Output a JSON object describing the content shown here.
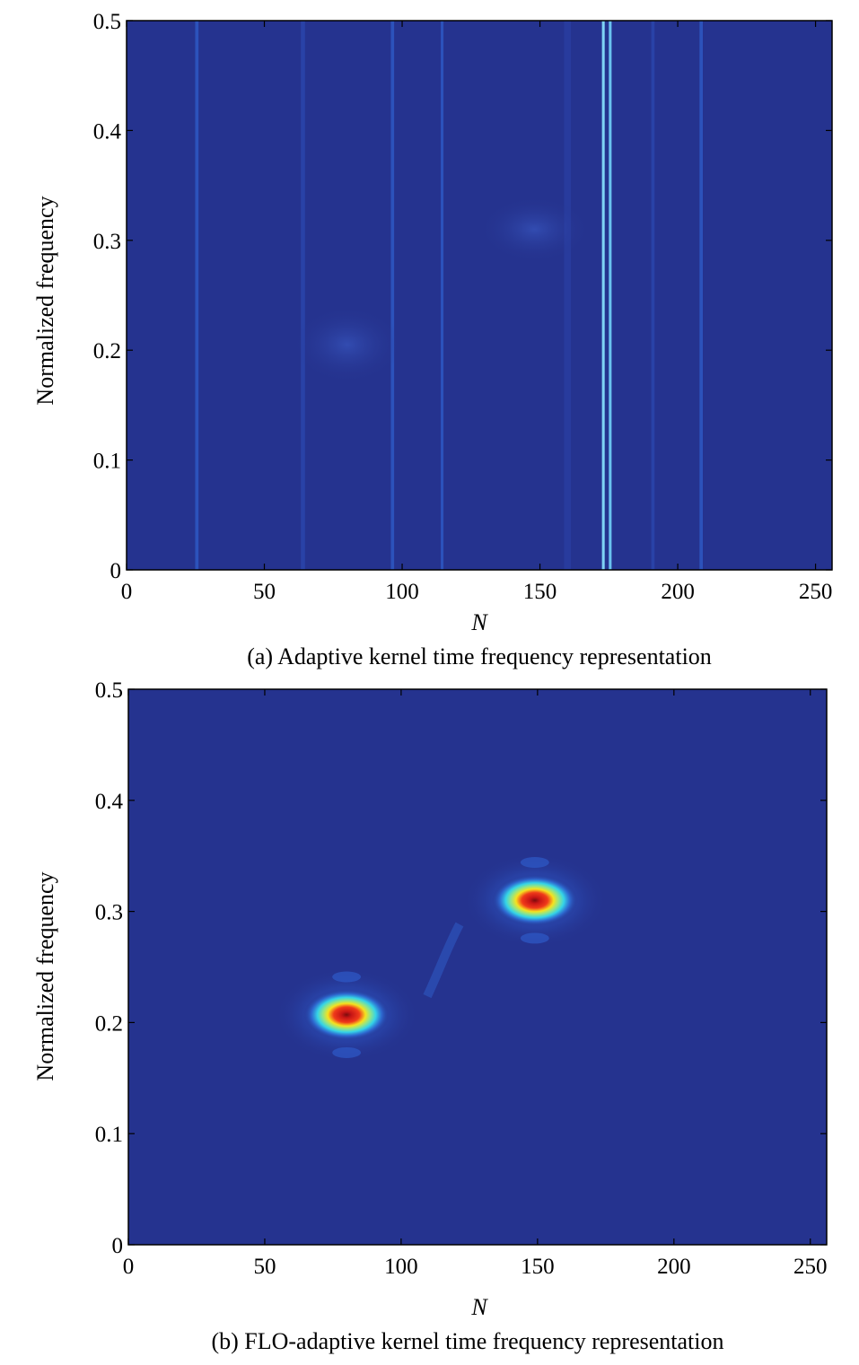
{
  "chart_data": [
    {
      "type": "heatmap",
      "caption": "(a) Adaptive kernel time frequency representation",
      "xlabel": "N",
      "ylabel": "Normalized frequency",
      "xlim": [
        0,
        256
      ],
      "ylim": [
        0,
        0.5
      ],
      "xticks": [
        0,
        50,
        100,
        150,
        200,
        250
      ],
      "xtick_labels": [
        "0",
        "50",
        "100",
        "150",
        "200",
        "250"
      ],
      "yticks": [
        0,
        0.1,
        0.2,
        0.3,
        0.4,
        0.5
      ],
      "ytick_labels": [
        "0",
        "0.1",
        "0.2",
        "0.3",
        "0.4",
        "0.5"
      ],
      "background_color": "#25338f",
      "vertical_lines": [
        {
          "x": 25.5,
          "width": 1.2,
          "color": "#2e55c0",
          "opacity": 0.9
        },
        {
          "x": 64,
          "width": 1.5,
          "color": "#2a46ad",
          "opacity": 0.8
        },
        {
          "x": 96.5,
          "width": 1.2,
          "color": "#2e55c0",
          "opacity": 0.9
        },
        {
          "x": 114.5,
          "width": 1.0,
          "color": "#2e55c0",
          "opacity": 0.9
        },
        {
          "x": 160,
          "width": 2.5,
          "color": "#2a3ea2",
          "opacity": 0.7
        },
        {
          "x": 173,
          "width": 1.0,
          "color": "#7fd3f5",
          "opacity": 1.0
        },
        {
          "x": 175.5,
          "width": 1.0,
          "color": "#6ac2ef",
          "opacity": 1.0
        },
        {
          "x": 191,
          "width": 1.2,
          "color": "#2a46ad",
          "opacity": 0.8
        },
        {
          "x": 208.5,
          "width": 1.2,
          "color": "#2e55c0",
          "opacity": 0.9
        }
      ],
      "blobs": [
        {
          "x": 80,
          "y": 0.205,
          "rx": 20,
          "ry": 0.035,
          "intensity": 0.12
        },
        {
          "x": 148,
          "y": 0.31,
          "rx": 20,
          "ry": 0.03,
          "intensity": 0.12
        }
      ]
    },
    {
      "type": "heatmap",
      "caption": "(b) FLO-adaptive kernel time frequency representation",
      "xlabel": "N",
      "ylabel": "Normalized frequency",
      "xlim": [
        0,
        256
      ],
      "ylim": [
        0,
        0.5
      ],
      "xticks": [
        0,
        50,
        100,
        150,
        200,
        250
      ],
      "xtick_labels": [
        "0",
        "50",
        "100",
        "150",
        "200",
        "250"
      ],
      "yticks": [
        0,
        0.1,
        0.2,
        0.3,
        0.4,
        0.5
      ],
      "ytick_labels": [
        "0",
        "0.1",
        "0.2",
        "0.3",
        "0.4",
        "0.5"
      ],
      "background_color": "#25338f",
      "vertical_lines": [],
      "blobs": [
        {
          "x": 80,
          "y": 0.207,
          "rx": 15,
          "ry": 0.022,
          "intensity": 1.0
        },
        {
          "x": 149,
          "y": 0.31,
          "rx": 15,
          "ry": 0.022,
          "intensity": 1.0
        }
      ]
    }
  ]
}
